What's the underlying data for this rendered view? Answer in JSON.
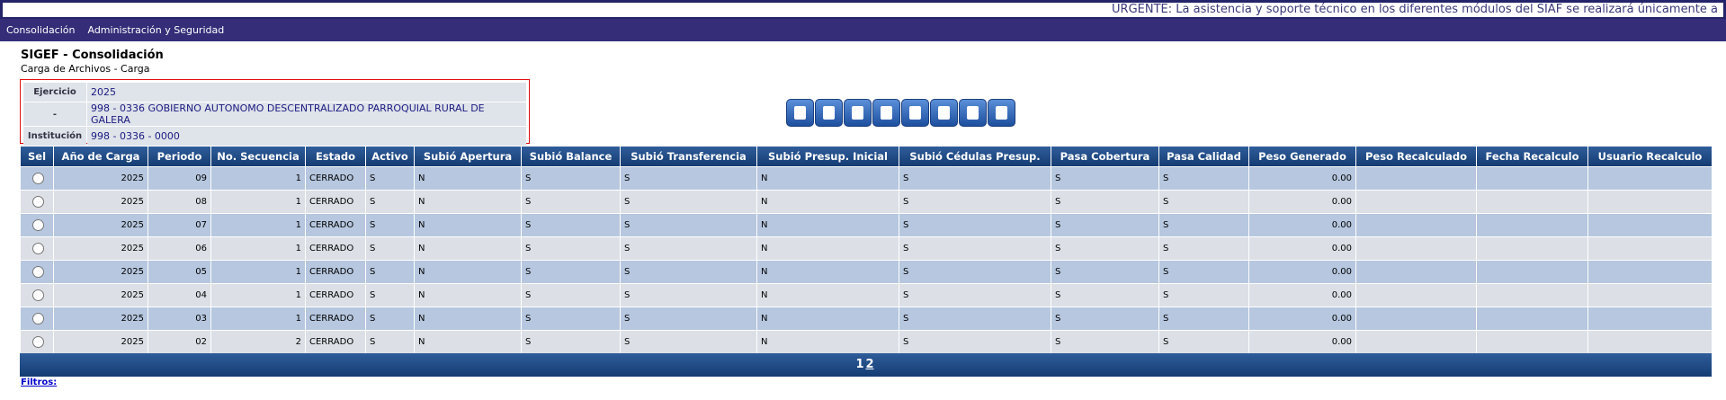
{
  "marquee": "URGENTE: La asistencia y soporte técnico en los diferentes módulos del SIAF se realizará únicamente a",
  "menu": [
    "Consolidación",
    "Administración y Seguridad"
  ],
  "header": {
    "title": "SIGEF - Consolidación",
    "subtitle": "Carga de Archivos - Carga"
  },
  "info": [
    {
      "label": "Ejercicio",
      "value": "2025"
    },
    {
      "label": "-",
      "value": "998 - 0336 GOBIERNO AUTONOMO DESCENTRALIZADO PARROQUIAL RURAL DE GALERA"
    },
    {
      "label": "Institución",
      "value": "998 - 0336 - 0000"
    }
  ],
  "table": {
    "columns": [
      "Sel",
      "Año de Carga",
      "Periodo",
      "No. Secuencia",
      "Estado",
      "Activo",
      "Subió Apertura",
      "Subió Balance",
      "Subió Transferencia",
      "Subió Presup. Inicial",
      "Subió Cédulas Presup.",
      "Pasa Cobertura",
      "Pasa Calidad",
      "Peso Generado",
      "Peso Recalculado",
      "Fecha Recalculo",
      "Usuario Recalculo"
    ],
    "rows": [
      [
        "2025",
        "09",
        "1",
        "CERRADO",
        "S",
        "N",
        "S",
        "S",
        "N",
        "S",
        "S",
        "S",
        "0.00"
      ],
      [
        "2025",
        "08",
        "1",
        "CERRADO",
        "S",
        "N",
        "S",
        "S",
        "N",
        "S",
        "S",
        "S",
        "0.00"
      ],
      [
        "2025",
        "07",
        "1",
        "CERRADO",
        "S",
        "N",
        "S",
        "S",
        "N",
        "S",
        "S",
        "S",
        "0.00"
      ],
      [
        "2025",
        "06",
        "1",
        "CERRADO",
        "S",
        "N",
        "S",
        "S",
        "N",
        "S",
        "S",
        "S",
        "0.00"
      ],
      [
        "2025",
        "05",
        "1",
        "CERRADO",
        "S",
        "N",
        "S",
        "S",
        "N",
        "S",
        "S",
        "S",
        "0.00"
      ],
      [
        "2025",
        "04",
        "1",
        "CERRADO",
        "S",
        "N",
        "S",
        "S",
        "N",
        "S",
        "S",
        "S",
        "0.00"
      ],
      [
        "2025",
        "03",
        "1",
        "CERRADO",
        "S",
        "N",
        "S",
        "S",
        "N",
        "S",
        "S",
        "S",
        "0.00"
      ],
      [
        "2025",
        "02",
        "2",
        "CERRADO",
        "S",
        "N",
        "S",
        "S",
        "N",
        "S",
        "S",
        "S",
        "0.00"
      ]
    ]
  },
  "pagination": [
    "1",
    "2"
  ],
  "filters": "Filtros:"
}
